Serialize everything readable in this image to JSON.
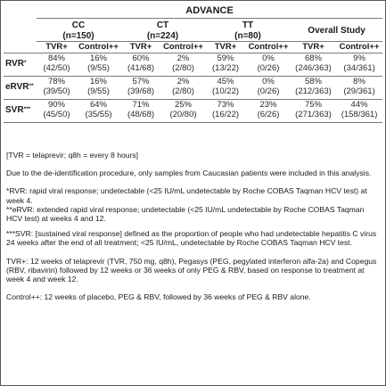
{
  "title": "ADVANCE",
  "groups": [
    {
      "name": "CC",
      "n": "(n=150)"
    },
    {
      "name": "CT",
      "n": "(n=224)"
    },
    {
      "name": "TT",
      "n": "(n=80)"
    },
    {
      "name": "Overall Study",
      "n": ""
    }
  ],
  "subheaders": [
    "TVR+",
    "Control++",
    "TVR+",
    "Control++",
    "TVR+",
    "Control++",
    "TVR+",
    "Control++"
  ],
  "rows": [
    {
      "label": "RVR",
      "mark": "*",
      "cells": [
        {
          "pct": "84%",
          "frac": "(42/50)"
        },
        {
          "pct": "16%",
          "frac": "(9/55)"
        },
        {
          "pct": "60%",
          "frac": "(41/68)"
        },
        {
          "pct": "2%",
          "frac": "(2/80)"
        },
        {
          "pct": "59%",
          "frac": "(13/22)"
        },
        {
          "pct": "0%",
          "frac": "(0/26)"
        },
        {
          "pct": "68%",
          "frac": "(246/363)"
        },
        {
          "pct": "9%",
          "frac": "(34/361)"
        }
      ]
    },
    {
      "label": "eRVR",
      "mark": "**",
      "cells": [
        {
          "pct": "78%",
          "frac": "(39/50)"
        },
        {
          "pct": "16%",
          "frac": "(9/55)"
        },
        {
          "pct": "57%",
          "frac": "(39/68)"
        },
        {
          "pct": "2%",
          "frac": "(2/80)"
        },
        {
          "pct": "45%",
          "frac": "(10/22)"
        },
        {
          "pct": "0%",
          "frac": "(0/26)"
        },
        {
          "pct": "58%",
          "frac": "(212/363)"
        },
        {
          "pct": "8%",
          "frac": "(29/361)"
        }
      ]
    },
    {
      "label": "SVR",
      "mark": "***",
      "cells": [
        {
          "pct": "90%",
          "frac": "(45/50)"
        },
        {
          "pct": "64%",
          "frac": "(35/55)"
        },
        {
          "pct": "71%",
          "frac": "(48/68)"
        },
        {
          "pct": "25%",
          "frac": "(20/80)"
        },
        {
          "pct": "73%",
          "frac": "(16/22)"
        },
        {
          "pct": "23%",
          "frac": "(6/26)"
        },
        {
          "pct": "75%",
          "frac": "(271/363)"
        },
        {
          "pct": "44%",
          "frac": "(158/361)"
        }
      ]
    }
  ],
  "notes": {
    "abbrev": "[TVR = telaprevir; q8h = every 8 hours]",
    "deid": "Due to the de-identification procedure, only samples from Caucasian patients were included in this analysis.",
    "rvr": "*RVR: rapid viral response; undetectable (<25 IU/mL undetectable by Roche COBAS Taqman HCV test) at week 4.",
    "ervr": "**eRVR: extended rapid viral response; undetectable (<25 IU/mL undetectable by Roche COBAS Taqman HCV test) at weeks 4 and 12.",
    "svr": "***SVR: [sustained viral response] defined as the proportion of people who had undetectable hepatitis C virus 24 weeks after the end of all treatment; <25 IU/mL, undetectable by Roche COBAS Taqman HCV test.",
    "tvr": "TVR+: 12 weeks of telaprevir (TVR, 750 mg, q8h), Pegasys (PEG, pegylated interferon alfa-2a) and Copegus (RBV, ribavirin) followed by 12 weeks or 36 weeks of only PEG & RBV, based on response to treatment at week 4 and week 12.",
    "control": "Control++: 12 weeks of placebo, PEG & RBV, followed by 36 weeks of PEG & RBV alone."
  }
}
